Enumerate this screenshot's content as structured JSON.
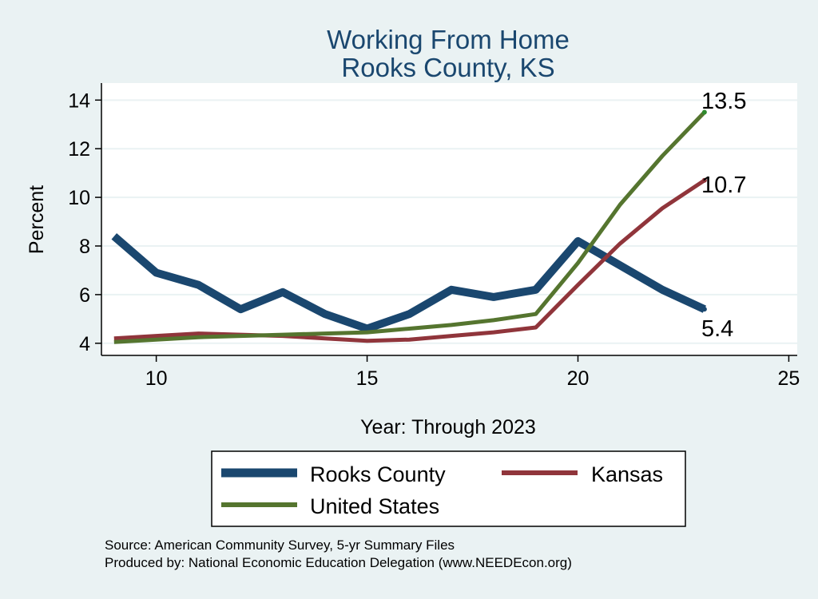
{
  "chart_data": {
    "type": "line",
    "title": "Working From Home",
    "subtitle": "Rooks County, KS",
    "xlabel": "Year: Through 2023",
    "ylabel": "Percent",
    "xlim": [
      8.7,
      25.2
    ],
    "ylim": [
      3.5,
      14.7
    ],
    "xticks": [
      10,
      15,
      20,
      25
    ],
    "yticks": [
      4,
      6,
      8,
      10,
      12,
      14
    ],
    "grid": true,
    "series": [
      {
        "name": "Rooks County",
        "color": "#1a476f",
        "x": [
          9,
          10,
          11,
          12,
          13,
          14,
          15,
          16,
          17,
          18,
          19,
          20,
          21,
          22,
          23
        ],
        "y": [
          8.4,
          6.9,
          6.4,
          5.4,
          6.1,
          5.2,
          4.6,
          5.2,
          6.2,
          5.9,
          6.2,
          8.2,
          7.2,
          6.2,
          5.4
        ]
      },
      {
        "name": "Kansas",
        "color": "#90353b",
        "x": [
          9,
          10,
          11,
          12,
          13,
          14,
          15,
          16,
          17,
          18,
          19,
          20,
          21,
          22,
          23
        ],
        "y": [
          4.2,
          4.3,
          4.4,
          4.35,
          4.3,
          4.2,
          4.1,
          4.15,
          4.3,
          4.45,
          4.65,
          6.4,
          8.1,
          9.55,
          10.7
        ]
      },
      {
        "name": "United States",
        "color": "#55752f",
        "x": [
          9,
          10,
          11,
          12,
          13,
          14,
          15,
          16,
          17,
          18,
          19,
          20,
          21,
          22,
          23
        ],
        "y": [
          4.05,
          4.15,
          4.25,
          4.3,
          4.35,
          4.4,
          4.45,
          4.6,
          4.75,
          4.95,
          5.2,
          7.3,
          9.7,
          11.7,
          13.5
        ]
      }
    ],
    "end_labels": [
      "13.5",
      "10.7",
      "5.4"
    ],
    "legend": {
      "position": "bottom",
      "entries": [
        "Rooks County",
        "Kansas",
        "United States"
      ]
    }
  },
  "notes": {
    "source": "Source: American Community Survey, 5-yr Summary Files",
    "producer": "Produced by: National Economic Education Delegation (www.NEEDEcon.org)"
  },
  "colors": {
    "background": "#eaf2f3",
    "plot_background": "#ffffff",
    "title": "#1a476f"
  }
}
